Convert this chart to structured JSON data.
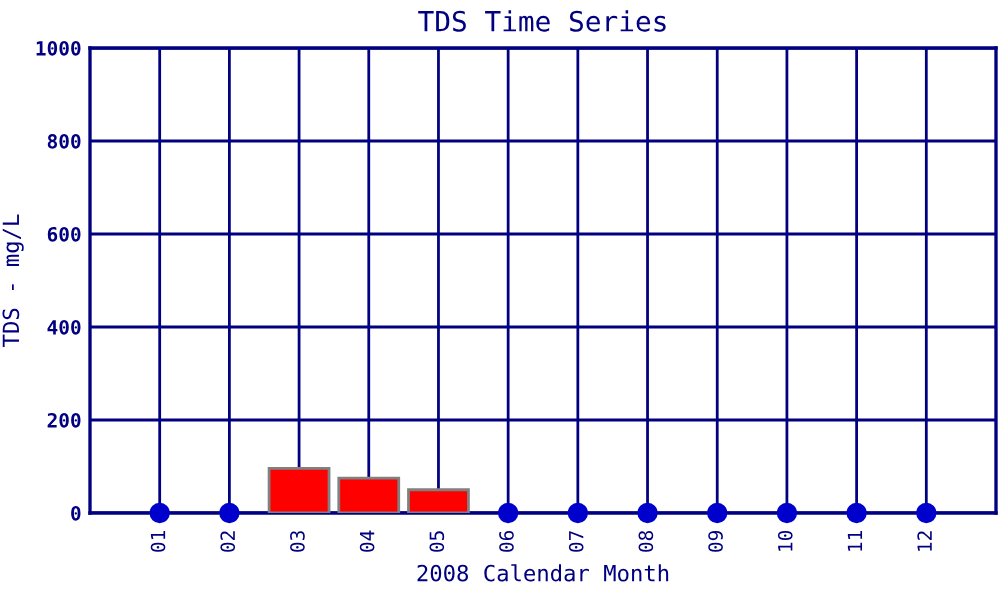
{
  "chart_data": {
    "type": "bar",
    "title": "TDS Time Series",
    "xlabel": "2008 Calendar Month",
    "ylabel": "TDS - mg/L",
    "categories": [
      "01",
      "02",
      "03",
      "04",
      "05",
      "06",
      "07",
      "08",
      "09",
      "10",
      "11",
      "12"
    ],
    "series": [
      {
        "color": "#ff0000",
        "values": [
          null,
          null,
          96,
          75,
          50,
          null,
          null,
          null,
          null,
          null,
          null,
          null
        ]
      },
      {
        "type": "scatter",
        "color": "#0000cc",
        "values": [
          0,
          0,
          null,
          null,
          null,
          0,
          0,
          0,
          0,
          0,
          0,
          0
        ]
      }
    ],
    "ylim": [
      0,
      1000
    ],
    "yticks": [
      0,
      200,
      400,
      600,
      800,
      1000
    ],
    "grid": true,
    "marker": "circle",
    "legend": false
  }
}
